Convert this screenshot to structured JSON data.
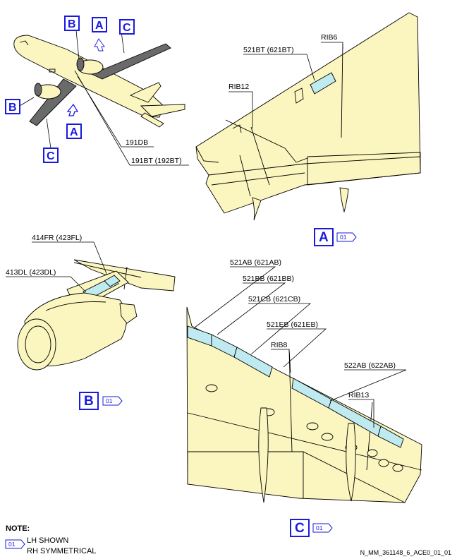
{
  "overview": {
    "callouts": {
      "a": "A",
      "b": "B",
      "c": "C"
    },
    "labels": {
      "l191db": "191DB",
      "l191bt": "191BT (192BT)"
    }
  },
  "view_a": {
    "labels": {
      "rib6": "RIB6",
      "p521bt": "521BT (621BT)",
      "rib12": "RIB12"
    },
    "title": "A",
    "effectivity": "01"
  },
  "view_b": {
    "labels": {
      "p414fr": "414FR (423FL)",
      "p413dl": "413DL (423DL)"
    },
    "title": "B",
    "effectivity": "01"
  },
  "view_c": {
    "labels": {
      "p521ab": "521AB (621AB)",
      "p521bb": "521BB (621BB)",
      "p521cb": "521CB (621CB)",
      "p521eb": "521EB (621EB)",
      "rib8": "RIB8",
      "p522ab": "522AB (622AB)",
      "rib13": "RIB13"
    },
    "title": "C",
    "effectivity": "01"
  },
  "note": {
    "heading": "NOTE:",
    "effectivity": "01",
    "line1": "LH SHOWN",
    "line2": "RH SYMMETRICAL"
  },
  "figure_id": "N_MM_361148_6_ACE0_01_01",
  "colors": {
    "skin": "#fbf5bf",
    "panel": "#bfeaf0",
    "callout": "#1a1adf",
    "wing_grey": "#6a6a6a"
  }
}
